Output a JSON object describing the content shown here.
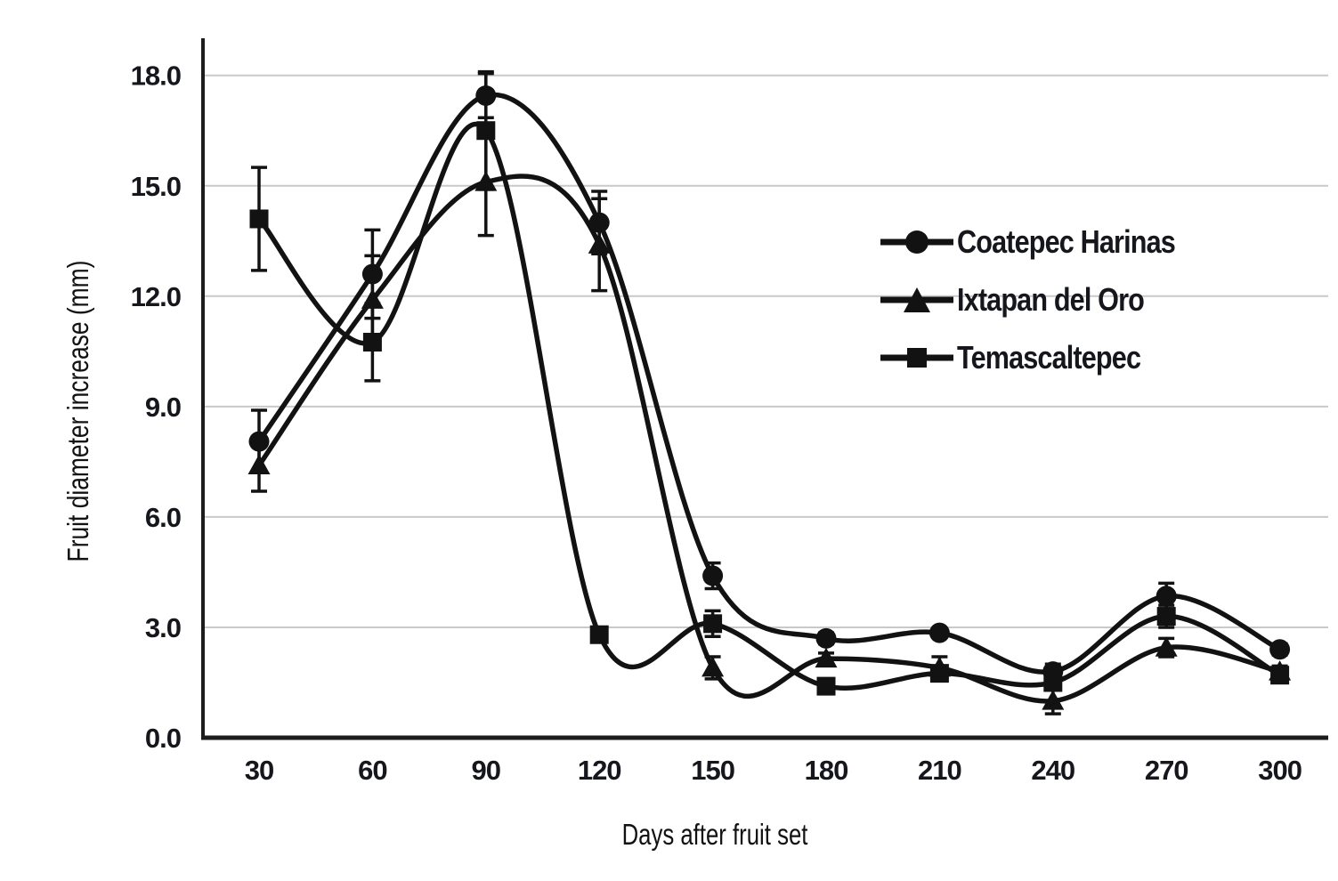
{
  "chart_data": {
    "type": "line",
    "title": "",
    "xlabel": "Days after fruit set",
    "ylabel": "Fruit diameter increase (mm)",
    "x": [
      30,
      60,
      90,
      120,
      150,
      180,
      210,
      240,
      270,
      300
    ],
    "x_ticks": [
      "30",
      "60",
      "90",
      "120",
      "150",
      "180",
      "210",
      "240",
      "270",
      "300"
    ],
    "y_ticks": [
      "0.0",
      "3.0",
      "6.0",
      "9.0",
      "12.0",
      "15.0",
      "18.0"
    ],
    "ylim": [
      0,
      19
    ],
    "grid": "horizontal-light",
    "legend_position": "inside-right",
    "error_bars": true,
    "series": [
      {
        "name": "Coatepec Harinas",
        "marker": "circle",
        "values": [
          8.05,
          12.6,
          17.45,
          14.0,
          4.4,
          2.7,
          2.85,
          1.8,
          3.85,
          2.4
        ],
        "errors": [
          0.85,
          1.2,
          0.6,
          0.85,
          0.35,
          0.15,
          0.12,
          0.2,
          0.35,
          0.15
        ]
      },
      {
        "name": "Ixtapan del Oro",
        "marker": "triangle",
        "values": [
          7.4,
          11.9,
          15.1,
          13.4,
          1.9,
          2.15,
          1.9,
          1.0,
          2.45,
          1.8
        ],
        "errors": [
          0.7,
          1.2,
          1.45,
          1.25,
          0.3,
          0.15,
          0.3,
          0.35,
          0.25,
          0.15
        ]
      },
      {
        "name": "Temascaltepec",
        "marker": "square",
        "values": [
          14.1,
          10.75,
          16.5,
          2.8,
          3.1,
          1.4,
          1.75,
          1.5,
          3.3,
          1.7
        ],
        "errors": [
          1.4,
          1.05,
          1.6,
          0.15,
          0.35,
          0.12,
          0.15,
          0.15,
          0.3,
          0.2
        ]
      }
    ],
    "colors": {
      "line": "#121212",
      "grid": "#c9c9c9",
      "axis": "#1c1c1c",
      "text": "#15171d"
    }
  }
}
